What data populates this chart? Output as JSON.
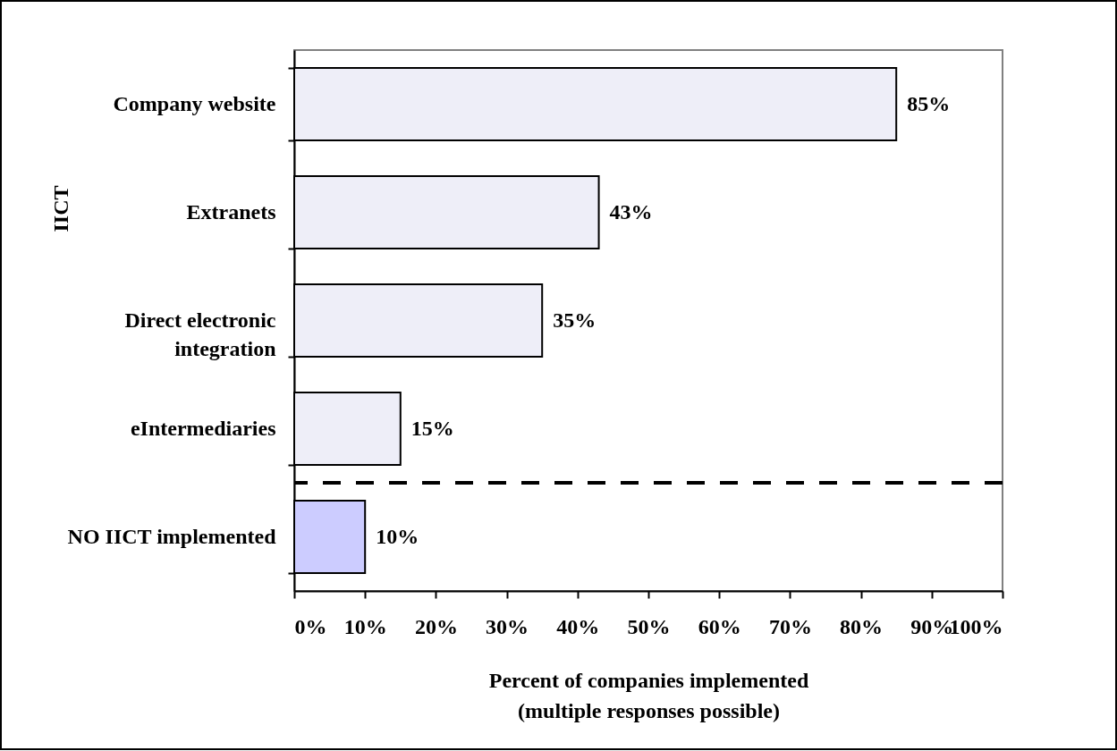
{
  "chart_data": {
    "type": "bar",
    "orientation": "horizontal",
    "categories": [
      "Company website",
      "Extranets",
      "Direct electronic integration",
      "eIntermediaries",
      "NO IICT implemented"
    ],
    "values": [
      85,
      43,
      35,
      15,
      10
    ],
    "colors": [
      "#eeeef8",
      "#eeeef8",
      "#eeeef8",
      "#eeeef8",
      "#ccccff"
    ],
    "value_labels": [
      "85%",
      "43%",
      "35%",
      "15%",
      "10%"
    ],
    "xlabel": "Percent of companies implemented\n(multiple responses possible)",
    "ylabel": "IICT",
    "xlim": [
      0,
      100
    ],
    "xticks": [
      {
        "value": 0,
        "label": "0%"
      },
      {
        "value": 10,
        "label": "10%"
      },
      {
        "value": 20,
        "label": "20%"
      },
      {
        "value": 30,
        "label": "30%"
      },
      {
        "value": 40,
        "label": "40%"
      },
      {
        "value": 50,
        "label": "50%"
      },
      {
        "value": 60,
        "label": "60%"
      },
      {
        "value": 70,
        "label": "70%"
      },
      {
        "value": 80,
        "label": "80%"
      },
      {
        "value": 90,
        "label": "90%"
      },
      {
        "value": 100,
        "label": "100%"
      }
    ],
    "grid": false,
    "legend": false
  }
}
